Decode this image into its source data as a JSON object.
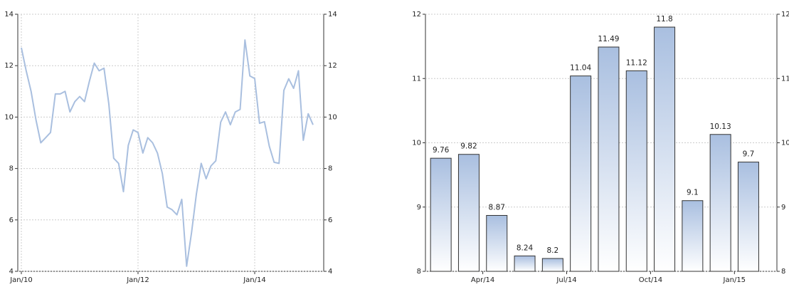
{
  "chart_data": [
    {
      "type": "line",
      "categories": [
        "Jan/10",
        null,
        null,
        null,
        null,
        null,
        null,
        null,
        null,
        null,
        null,
        null,
        null,
        null,
        null,
        null,
        null,
        null,
        null,
        null,
        null,
        null,
        null,
        null,
        "Jan/12",
        null,
        null,
        null,
        null,
        null,
        null,
        null,
        null,
        null,
        null,
        null,
        null,
        null,
        null,
        null,
        null,
        null,
        null,
        null,
        null,
        null,
        null,
        null,
        "Jan/14",
        null,
        null,
        null,
        null,
        null,
        null,
        null,
        null,
        null,
        null,
        null,
        null
      ],
      "values": [
        12.7,
        11.8,
        11.0,
        9.9,
        9.0,
        9.2,
        9.4,
        10.9,
        10.9,
        11.0,
        10.2,
        10.6,
        10.8,
        10.6,
        11.4,
        12.1,
        11.8,
        11.9,
        10.5,
        8.4,
        8.2,
        7.1,
        8.9,
        9.5,
        9.4,
        8.6,
        9.2,
        9.0,
        8.6,
        7.8,
        6.5,
        6.4,
        6.2,
        6.8,
        4.2,
        5.5,
        7.0,
        8.2,
        7.6,
        8.1,
        8.3,
        9.8,
        10.2,
        9.7,
        10.2,
        10.3,
        13.0,
        11.6,
        11.5,
        9.76,
        9.82,
        8.87,
        8.24,
        8.2,
        11.04,
        11.49,
        11.12,
        11.8,
        9.1,
        10.13,
        9.7
      ],
      "color": "#a9bfdf",
      "ylim": [
        4,
        14
      ],
      "yticks": [
        4,
        6,
        8,
        10,
        12,
        14
      ],
      "grid": true
    },
    {
      "type": "bar",
      "categories": [
        null,
        null,
        "Apr/14",
        null,
        null,
        "Jul/14",
        null,
        null,
        "Oct/14",
        null,
        null,
        "Jan/15"
      ],
      "values": [
        9.76,
        9.82,
        8.87,
        8.24,
        8.2,
        11.04,
        11.49,
        11.12,
        11.8,
        9.1,
        10.13,
        9.7
      ],
      "color": "#a9bfe0",
      "ylim": [
        8,
        12
      ],
      "yticks": [
        8,
        9,
        10,
        11,
        12
      ],
      "grid": true
    }
  ]
}
